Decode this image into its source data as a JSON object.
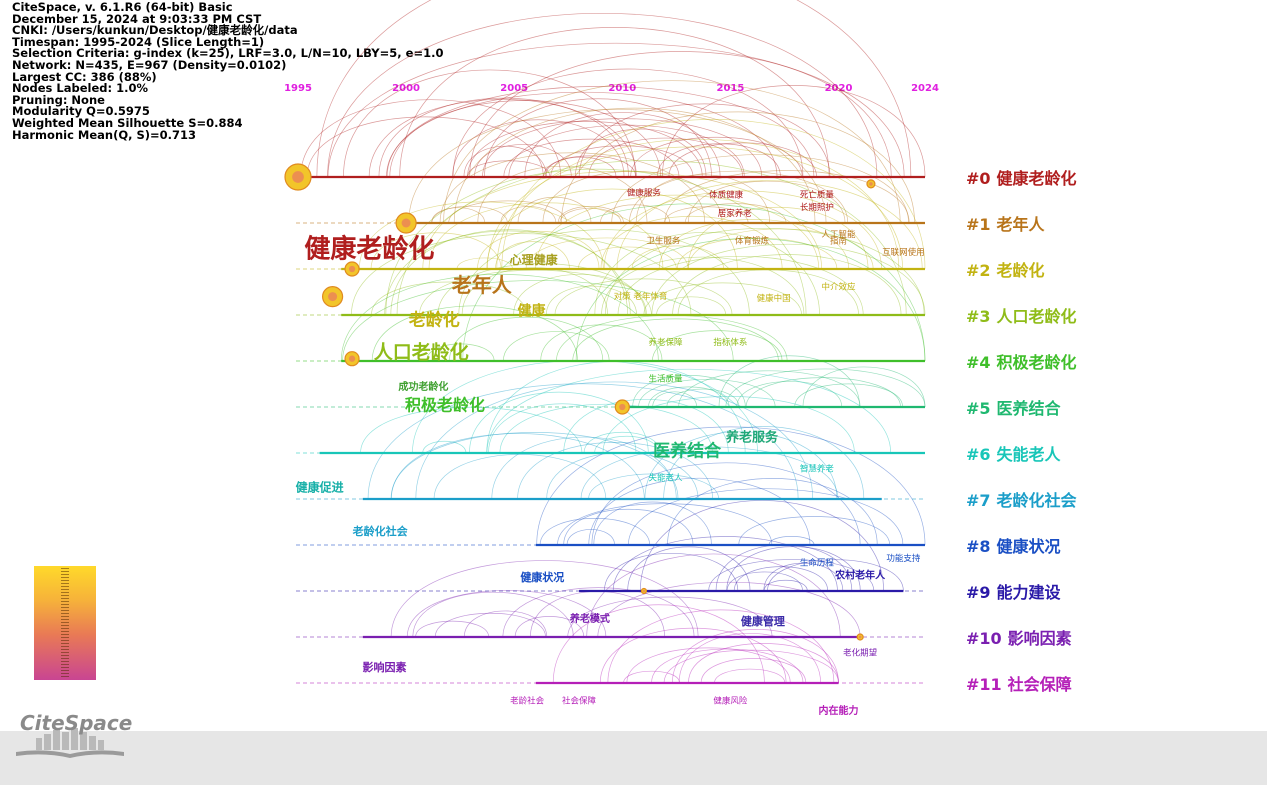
{
  "info": [
    "CiteSpace, v. 6.1.R6 (64-bit) Basic",
    "December 15, 2024 at 9:03:33 PM CST",
    "CNKI: /Users/kunkun/Desktop/健康老龄化/data",
    "Timespan: 1995-2024 (Slice Length=1)",
    "Selection Criteria: g-index (k=25), LRF=3.0, L/N=10, LBY=5, e=1.0",
    "Network: N=435, E=967 (Density=0.0102)",
    "Largest CC: 386 (88%)",
    "Nodes Labeled: 1.0%",
    "Pruning: None",
    "Modularity Q=0.5975",
    "Weighted Mean Silhouette S=0.884",
    "Harmonic Mean(Q, S)=0.713"
  ],
  "years": [
    {
      "label": "1995",
      "value": 1995
    },
    {
      "label": "2000",
      "value": 2000
    },
    {
      "label": "2005",
      "value": 2005
    },
    {
      "label": "2010",
      "value": 2010
    },
    {
      "label": "2015",
      "value": 2015
    },
    {
      "label": "2020",
      "value": 2020
    },
    {
      "label": "2024",
      "value": 2024
    }
  ],
  "clusters": [
    {
      "id": "#0",
      "label": "健康老龄化",
      "color": "#b01e1e",
      "start": 1995,
      "end": 2024
    },
    {
      "id": "#1",
      "label": "老年人",
      "color": "#b8741a",
      "start": 2000,
      "end": 2024
    },
    {
      "id": "#2",
      "label": "老龄化",
      "color": "#c2b312",
      "start": 1997,
      "end": 2024
    },
    {
      "id": "#3",
      "label": "人口老龄化",
      "color": "#8fbc18",
      "start": 1997,
      "end": 2024
    },
    {
      "id": "#4",
      "label": "积极老龄化",
      "color": "#3fbf2a",
      "start": 1997,
      "end": 2024
    },
    {
      "id": "#5",
      "label": "医养结合",
      "color": "#1fb870",
      "start": 2010,
      "end": 2024
    },
    {
      "id": "#6",
      "label": "失能老人",
      "color": "#18c6b8",
      "start": 1996,
      "end": 2024
    },
    {
      "id": "#7",
      "label": "老龄化社会",
      "color": "#1b9ec9",
      "start": 1998,
      "end": 2022
    },
    {
      "id": "#8",
      "label": "健康状况",
      "color": "#1a4fc4",
      "start": 2006,
      "end": 2024
    },
    {
      "id": "#9",
      "label": "能力建设",
      "color": "#2a1aa8",
      "start": 2008,
      "end": 2023
    },
    {
      "id": "#10",
      "label": "影响因素",
      "color": "#7a1fb0",
      "start": 1998,
      "end": 2021
    },
    {
      "id": "#11",
      "label": "社会保障",
      "color": "#b51fb8",
      "start": 2006,
      "end": 2020
    }
  ],
  "big_labels": [
    {
      "text": "健康老龄化",
      "color": "#b01e1e",
      "lane": 1.55,
      "year": 1998.3,
      "size": 26
    },
    {
      "text": "老年人",
      "color": "#b8741a",
      "lane": 2.35,
      "year": 2003.5,
      "size": 20
    },
    {
      "text": "心理健康",
      "color": "#a8a020",
      "lane": 1.8,
      "year": 2005.9,
      "size": 12
    },
    {
      "text": "老龄化",
      "color": "#c2b312",
      "lane": 3.1,
      "year": 2001.3,
      "size": 17
    },
    {
      "text": "健康",
      "color": "#c2b312",
      "lane": 2.9,
      "year": 2005.8,
      "size": 14
    },
    {
      "text": "人口老龄化",
      "color": "#8fbc18",
      "lane": 3.8,
      "year": 2000.7,
      "size": 19
    },
    {
      "text": "积极老龄化",
      "color": "#3fbf2a",
      "lane": 4.95,
      "year": 2001.8,
      "size": 16
    },
    {
      "text": "成功老龄化",
      "color": "#3fa030",
      "lane": 4.55,
      "year": 2000.8,
      "size": 10
    },
    {
      "text": "医养结合",
      "color": "#1fb870",
      "lane": 5.95,
      "year": 2013,
      "size": 17
    },
    {
      "text": "养老服务",
      "color": "#1fa878",
      "lane": 5.65,
      "year": 2016,
      "size": 13
    },
    {
      "text": "健康促进",
      "color": "#18b0a8",
      "lane": 6.75,
      "year": 1996,
      "size": 12
    },
    {
      "text": "老龄化社会",
      "color": "#1b9ec9",
      "lane": 7.7,
      "year": 1998.8,
      "size": 11
    },
    {
      "text": "健康状况",
      "color": "#1a4fc4",
      "lane": 8.7,
      "year": 2006.3,
      "size": 11
    },
    {
      "text": "健康管理",
      "color": "#3a2aa8",
      "lane": 9.65,
      "year": 2016.5,
      "size": 11
    },
    {
      "text": "养老模式",
      "color": "#7a1fb0",
      "lane": 9.6,
      "year": 2008.5,
      "size": 10
    },
    {
      "text": "影响因素",
      "color": "#7a1fb0",
      "lane": 10.65,
      "year": 1999,
      "size": 11
    },
    {
      "text": "农村老年人",
      "color": "#2a1aa8",
      "lane": 8.65,
      "year": 2021,
      "size": 10
    },
    {
      "text": "内在能力",
      "color": "#b51fb8",
      "lane": 11.6,
      "year": 2020,
      "size": 10
    }
  ],
  "small_labels": [
    {
      "text": "健康服务",
      "lane": 0.4,
      "year": 2011
    },
    {
      "text": "体质健康",
      "lane": 0.45,
      "year": 2014.8
    },
    {
      "text": "死亡质量",
      "lane": 0.45,
      "year": 2019
    },
    {
      "text": "长期照护",
      "lane": 0.72,
      "year": 2019
    },
    {
      "text": "居家养老",
      "lane": 0.85,
      "year": 2015.2
    },
    {
      "text": "卫生服务",
      "lane": 1.45,
      "year": 2011.9
    },
    {
      "text": "体育锻炼",
      "lane": 1.45,
      "year": 2016
    },
    {
      "text": "人工智能",
      "lane": 1.3,
      "year": 2020
    },
    {
      "text": "指南",
      "lane": 1.45,
      "year": 2020
    },
    {
      "text": "互联网使用",
      "lane": 1.7,
      "year": 2023
    },
    {
      "text": "对策",
      "lane": 2.65,
      "year": 2010
    },
    {
      "text": "老年体育",
      "lane": 2.65,
      "year": 2011.3
    },
    {
      "text": "健康中国",
      "lane": 2.7,
      "year": 2017
    },
    {
      "text": "中介效应",
      "lane": 2.45,
      "year": 2020
    },
    {
      "text": "养老保障",
      "lane": 3.65,
      "year": 2012
    },
    {
      "text": "指标体系",
      "lane": 3.65,
      "year": 2015
    },
    {
      "text": "生活质量",
      "lane": 4.45,
      "year": 2012
    },
    {
      "text": "智慧养老",
      "lane": 6.4,
      "year": 2019
    },
    {
      "text": "失能老人",
      "lane": 6.6,
      "year": 2012
    },
    {
      "text": "生命历程",
      "lane": 8.45,
      "year": 2019
    },
    {
      "text": "功能支持",
      "lane": 8.35,
      "year": 2023
    },
    {
      "text": "老化期望",
      "lane": 10.4,
      "year": 2021
    },
    {
      "text": "老龄社会",
      "lane": 11.45,
      "year": 2005.6
    },
    {
      "text": "社会保障",
      "lane": 11.45,
      "year": 2008
    },
    {
      "text": "健康风险",
      "lane": 11.45,
      "year": 2015
    }
  ]
}
